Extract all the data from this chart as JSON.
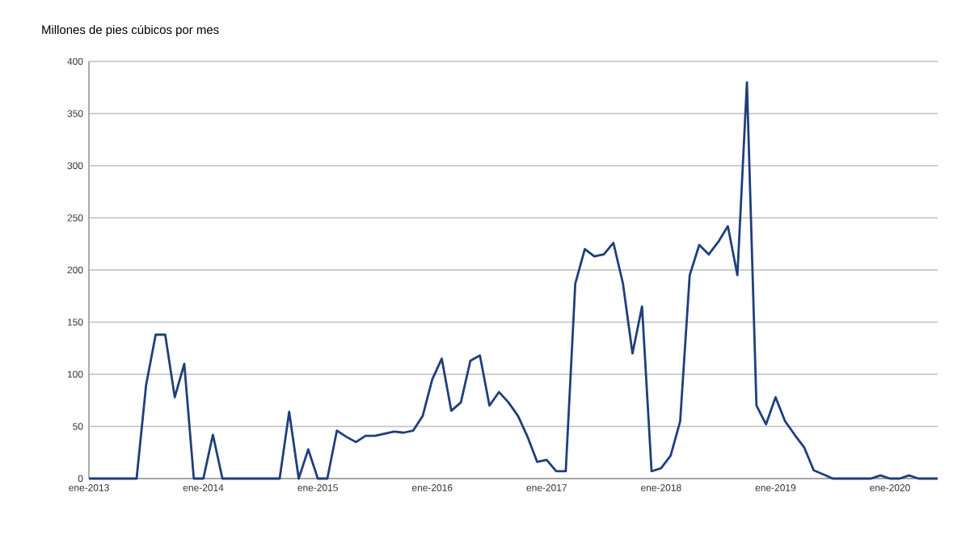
{
  "chart_data": {
    "type": "line",
    "title": "Millones de pies cúbicos por mes",
    "x": [
      "2013-01",
      "2013-02",
      "2013-03",
      "2013-04",
      "2013-05",
      "2013-06",
      "2013-07",
      "2013-08",
      "2013-09",
      "2013-10",
      "2013-11",
      "2013-12",
      "2014-01",
      "2014-02",
      "2014-03",
      "2014-04",
      "2014-05",
      "2014-06",
      "2014-07",
      "2014-08",
      "2014-09",
      "2014-10",
      "2014-11",
      "2014-12",
      "2015-01",
      "2015-02",
      "2015-03",
      "2015-04",
      "2015-05",
      "2015-06",
      "2015-07",
      "2015-08",
      "2015-09",
      "2015-10",
      "2015-11",
      "2015-12",
      "2016-01",
      "2016-02",
      "2016-03",
      "2016-04",
      "2016-05",
      "2016-06",
      "2016-07",
      "2016-08",
      "2016-09",
      "2016-10",
      "2016-11",
      "2016-12",
      "2017-01",
      "2017-02",
      "2017-03",
      "2017-04",
      "2017-05",
      "2017-06",
      "2017-07",
      "2017-08",
      "2017-09",
      "2017-10",
      "2017-11",
      "2017-12",
      "2018-01",
      "2018-02",
      "2018-03",
      "2018-04",
      "2018-05",
      "2018-06",
      "2018-07",
      "2018-08",
      "2018-09",
      "2018-10",
      "2018-11",
      "2018-12",
      "2019-01",
      "2019-02",
      "2019-03",
      "2019-04",
      "2019-05",
      "2019-06",
      "2019-07",
      "2019-08",
      "2019-09",
      "2019-10",
      "2019-11",
      "2019-12",
      "2020-01",
      "2020-02",
      "2020-03",
      "2020-04",
      "2020-05",
      "2020-06"
    ],
    "series": [
      {
        "color": "#1f3f7a",
        "values": [
          0,
          0,
          0,
          0,
          0,
          0,
          90,
          138,
          138,
          78,
          110,
          0,
          0,
          42,
          0,
          0,
          0,
          0,
          0,
          0,
          0,
          64,
          0,
          28,
          0,
          0,
          46,
          40,
          35,
          41,
          41,
          43,
          45,
          44,
          46,
          60,
          95,
          115,
          65,
          73,
          113,
          118,
          70,
          83,
          73,
          60,
          40,
          16,
          18,
          7,
          7,
          187,
          220,
          213,
          215,
          226,
          187,
          120,
          165,
          7,
          10,
          22,
          55,
          195,
          224,
          215,
          227,
          242,
          195,
          380,
          70,
          52,
          78,
          55,
          42,
          30,
          8,
          4,
          0,
          0,
          0,
          0,
          0,
          3,
          0,
          0,
          3,
          0,
          0,
          0
        ]
      }
    ],
    "xlim": [
      "2013-01",
      "2020-06"
    ],
    "xticks": [
      {
        "value": "2013-01",
        "label": "ene-2013"
      },
      {
        "value": "2014-01",
        "label": "ene-2014"
      },
      {
        "value": "2015-01",
        "label": "ene-2015"
      },
      {
        "value": "2016-01",
        "label": "ene-2016"
      },
      {
        "value": "2017-01",
        "label": "ene-2017"
      },
      {
        "value": "2018-01",
        "label": "ene-2018"
      },
      {
        "value": "2019-01",
        "label": "ene-2019"
      },
      {
        "value": "2020-01",
        "label": "ene-2020"
      }
    ],
    "ylim": [
      0,
      400
    ],
    "yticks": [
      0,
      50,
      100,
      150,
      200,
      250,
      300,
      350,
      400
    ],
    "grid": "y",
    "marker": "none",
    "line_style": "solid"
  }
}
